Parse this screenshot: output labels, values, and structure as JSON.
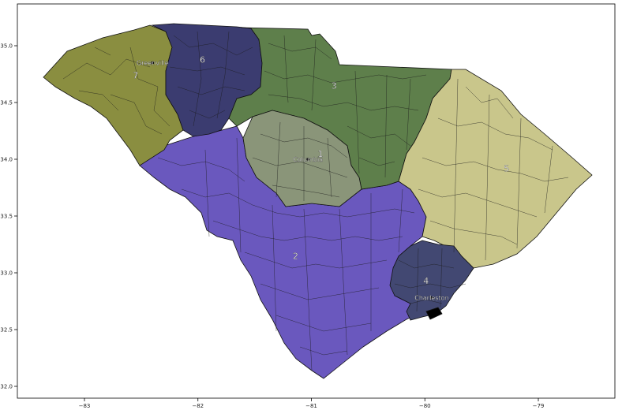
{
  "chart_data": {
    "type": "choropleth",
    "xlim": [
      -83.6,
      -78.4
    ],
    "ylim": [
      31.9,
      35.35
    ],
    "x_ticks": [
      -83,
      -82,
      -81,
      -80,
      -79
    ],
    "x_tick_labels": [
      "−83",
      "−82",
      "−81",
      "−80",
      "−79"
    ],
    "y_ticks": [
      32.0,
      32.5,
      33.0,
      33.5,
      34.0,
      34.5,
      35.0
    ],
    "y_tick_labels": [
      "32.0",
      "32.5",
      "33.0",
      "33.5",
      "34.0",
      "34.5",
      "35.0"
    ],
    "districts": [
      {
        "id": "1",
        "label": "1",
        "color": "#8a9579",
        "label_lon": -80.92,
        "label_lat": 34.05
      },
      {
        "id": "2",
        "label": "2",
        "color": "#6a58be",
        "label_lon": -81.14,
        "label_lat": 33.15
      },
      {
        "id": "3",
        "label": "3",
        "color": "#5e7f4b",
        "label_lon": -80.8,
        "label_lat": 34.65
      },
      {
        "id": "4",
        "label": "4",
        "color": "#424872",
        "label_lon": -79.99,
        "label_lat": 32.93
      },
      {
        "id": "5",
        "label": "5",
        "color": "#c9c68b",
        "label_lon": -79.28,
        "label_lat": 33.92
      },
      {
        "id": "6",
        "label": "6",
        "color": "#3b3c70",
        "label_lon": -81.96,
        "label_lat": 34.88
      },
      {
        "id": "7",
        "label": "7",
        "color": "#8a8e40",
        "label_lon": -82.55,
        "label_lat": 34.74
      }
    ],
    "cities": [
      {
        "name": "Greenville",
        "lon": -82.4,
        "lat": 34.85
      },
      {
        "name": "Columbia",
        "lon": -81.03,
        "lat": 34.0
      },
      {
        "name": "Charleston",
        "lon": -79.94,
        "lat": 32.78
      }
    ]
  }
}
